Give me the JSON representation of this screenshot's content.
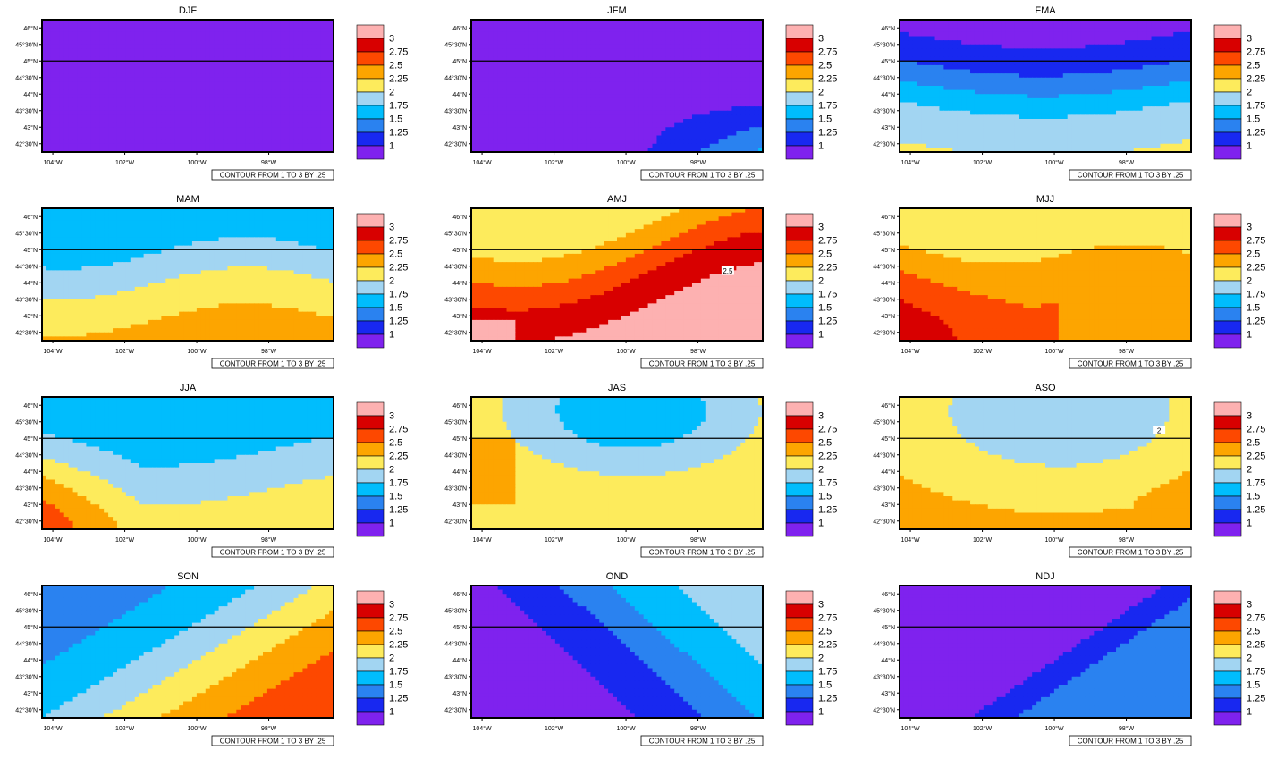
{
  "figure": {
    "rows": 4,
    "cols": 3,
    "lat_ticks": [
      "46°N",
      "45°30'N",
      "45°N",
      "44°30'N",
      "44°N",
      "43°30'N",
      "43°N",
      "42°30'N"
    ],
    "lon_ticks": [
      "104°W",
      "102°W",
      "100°W",
      "98°W"
    ],
    "legend_labels": [
      "3",
      "2.75",
      "2.5",
      "2.25",
      "2",
      "1.75",
      "1.5",
      "1.25",
      "1"
    ],
    "colorbar_colors": [
      "#7f22ee",
      "#1828f0",
      "#2a82f0",
      "#00bdfd",
      "#a2d5f2",
      "#fdeb5c",
      "#fda500",
      "#fd4800",
      "#d80000",
      "#fdb1b1"
    ],
    "contour_note": "CONTOUR FROM 1 TO 3 BY .25",
    "reference_line_lat": 45.0
  },
  "chart_data": [
    {
      "type": "heatmap",
      "title": "DJF",
      "lon_range": [
        -104.3,
        -96.2
      ],
      "lat_range": [
        42.25,
        46.25
      ],
      "field": "uniform ~0.9 (lowest class everywhere)",
      "label": ""
    },
    {
      "type": "heatmap",
      "title": "JFM",
      "lon_range": [
        -104.3,
        -96.2
      ],
      "lat_range": [
        42.25,
        46.25
      ],
      "field": "mostly <1, values 1-1.25 in south-east corner",
      "label": ""
    },
    {
      "type": "heatmap",
      "title": "FMA",
      "lon_range": [
        -104.3,
        -96.2
      ],
      "lat_range": [
        42.25,
        46.25
      ],
      "field": "1.75 in south rising to 1 in north",
      "label": ""
    },
    {
      "type": "heatmap",
      "title": "MAM",
      "lon_range": [
        -104.3,
        -96.2
      ],
      "lat_range": [
        42.25,
        46.25
      ],
      "field": "2.25 south to 1.5 north",
      "label": ""
    },
    {
      "type": "heatmap",
      "title": "AMJ",
      "lon_range": [
        -104.3,
        -96.2
      ],
      "lat_range": [
        42.25,
        46.25
      ],
      "field": "3 south-west to 2 north",
      "label": "2.5"
    },
    {
      "type": "heatmap",
      "title": "MJJ",
      "lon_range": [
        -104.3,
        -96.2
      ],
      "lat_range": [
        42.25,
        46.25
      ],
      "field": "2.75 south-west to 2 north",
      "label": ""
    },
    {
      "type": "heatmap",
      "title": "JJA",
      "lon_range": [
        -104.3,
        -96.2
      ],
      "lat_range": [
        42.25,
        46.25
      ],
      "field": "2.5 south-west to 1.5 north",
      "label": ""
    },
    {
      "type": "heatmap",
      "title": "JAS",
      "lon_range": [
        -104.3,
        -96.2
      ],
      "lat_range": [
        42.25,
        46.25
      ],
      "field": "2 south to 1.5 north",
      "label": ""
    },
    {
      "type": "heatmap",
      "title": "ASO",
      "lon_range": [
        -104.3,
        -96.2
      ],
      "lat_range": [
        42.25,
        46.25
      ],
      "field": "2.25 south to 1.75 north",
      "label": "2"
    },
    {
      "type": "heatmap",
      "title": "SON",
      "lon_range": [
        -104.3,
        -96.2
      ],
      "lat_range": [
        42.25,
        46.25
      ],
      "field": "2.5 south-east to 1.5 north-west",
      "label": ""
    },
    {
      "type": "heatmap",
      "title": "OND",
      "lon_range": [
        -104.3,
        -96.2
      ],
      "lat_range": [
        42.25,
        46.25
      ],
      "field": "1.75 east to 1 west",
      "label": ""
    },
    {
      "type": "heatmap",
      "title": "NDJ",
      "lon_range": [
        -104.3,
        -96.2
      ],
      "lat_range": [
        42.25,
        46.25
      ],
      "field": "1.25 south-east to <1 elsewhere",
      "label": ""
    }
  ]
}
